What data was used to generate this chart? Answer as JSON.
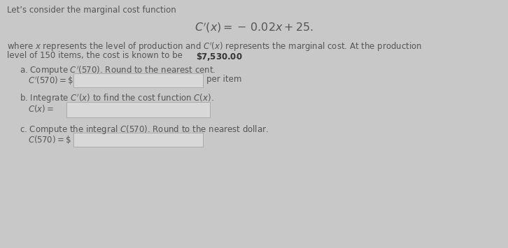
{
  "bg_color": "#c8c8c8",
  "text_color": "#555555",
  "bold_color": "#333333",
  "title_line": "Let’s consider the marginal cost function",
  "formula": "$C^{\\prime}(x) = -\\,0.02x + 25.$",
  "para_line1": "where $x$ represents the level of production and $C^{\\prime}(x)$ represents the marginal cost. At the production",
  "para_line2_pre": "level of 150 items, the cost is known to be ",
  "para_line2_bold": "$\\mathbf{\\$7{,}530.00}$",
  "para_line2_post": ".",
  "part_a_label": "a. Compute $C^{\\prime}(570)$. Round to the nearest cent.",
  "part_a_eq": "$C^{\\prime}(570) = \\$$",
  "part_a_suffix": "per item",
  "part_b_label": "b. Integrate $C^{\\prime}(x)$ to find the cost function $C(x)$.",
  "part_b_eq": "$C(x) =$",
  "part_c_label": "c. Compute the integral $C(570)$. Round to the nearest dollar.",
  "part_c_eq": "$C(570) = \\$$",
  "input_box_color": "#d8d8d8",
  "input_box_border": "#aaaaaa",
  "fs": 8.5,
  "fs_formula": 11.5
}
